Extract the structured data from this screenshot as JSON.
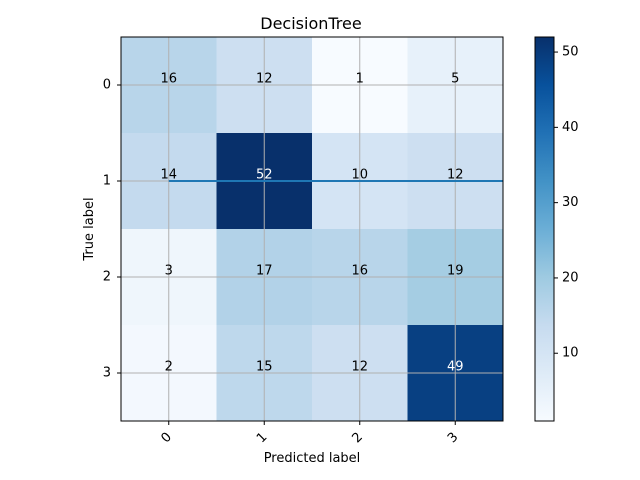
{
  "chart_data": {
    "type": "heatmap",
    "title": "DecisionTree",
    "xlabel": "Predicted label",
    "ylabel": "True label",
    "x_categories": [
      "0",
      "1",
      "2",
      "3"
    ],
    "y_categories": [
      "0",
      "1",
      "2",
      "3"
    ],
    "values": [
      [
        16,
        12,
        1,
        5
      ],
      [
        14,
        52,
        10,
        12
      ],
      [
        3,
        17,
        16,
        19
      ],
      [
        2,
        15,
        12,
        49
      ]
    ],
    "colormap": "Blues",
    "colorbar": {
      "min": 1,
      "max": 52,
      "ticks": [
        10,
        20,
        30,
        40,
        50
      ]
    },
    "x_tick_rotation_deg": 45,
    "grid": true,
    "annotation_line": {
      "orientation": "horizontal",
      "at_row": 1,
      "color": "#1f77b4"
    }
  }
}
